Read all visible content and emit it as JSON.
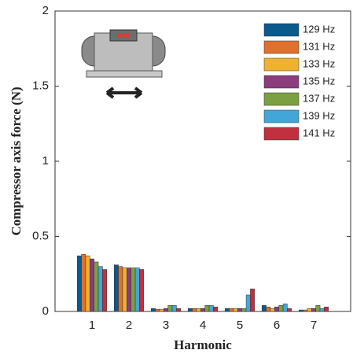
{
  "chart_data": {
    "type": "bar",
    "xlabel": "Harmonic",
    "ylabel": "Compressor axis force (N)",
    "categories": [
      "1",
      "2",
      "3",
      "4",
      "5",
      "6",
      "7"
    ],
    "series": [
      {
        "name": "129 Hz",
        "color": "#0b5a8c",
        "values": [
          0.37,
          0.31,
          0.02,
          0.02,
          0.02,
          0.04,
          0.01
        ]
      },
      {
        "name": "131 Hz",
        "color": "#e0702e",
        "values": [
          0.38,
          0.3,
          0.015,
          0.02,
          0.02,
          0.03,
          0.01
        ]
      },
      {
        "name": "133 Hz",
        "color": "#efb22e",
        "values": [
          0.37,
          0.29,
          0.015,
          0.02,
          0.02,
          0.02,
          0.02
        ]
      },
      {
        "name": "135 Hz",
        "color": "#8b3d7c",
        "values": [
          0.35,
          0.29,
          0.02,
          0.02,
          0.02,
          0.03,
          0.02
        ]
      },
      {
        "name": "137 Hz",
        "color": "#7aa042",
        "values": [
          0.33,
          0.29,
          0.04,
          0.04,
          0.02,
          0.04,
          0.04
        ]
      },
      {
        "name": "139 Hz",
        "color": "#42a7d8",
        "values": [
          0.3,
          0.29,
          0.04,
          0.04,
          0.11,
          0.05,
          0.02
        ]
      },
      {
        "name": "141 Hz",
        "color": "#c0303f",
        "values": [
          0.28,
          0.28,
          0.02,
          0.03,
          0.15,
          0.02,
          0.03
        ]
      }
    ],
    "ylim": [
      0,
      2
    ],
    "yticks": [
      0,
      0.5,
      1,
      1.5,
      2
    ],
    "legend": "upper right"
  }
}
